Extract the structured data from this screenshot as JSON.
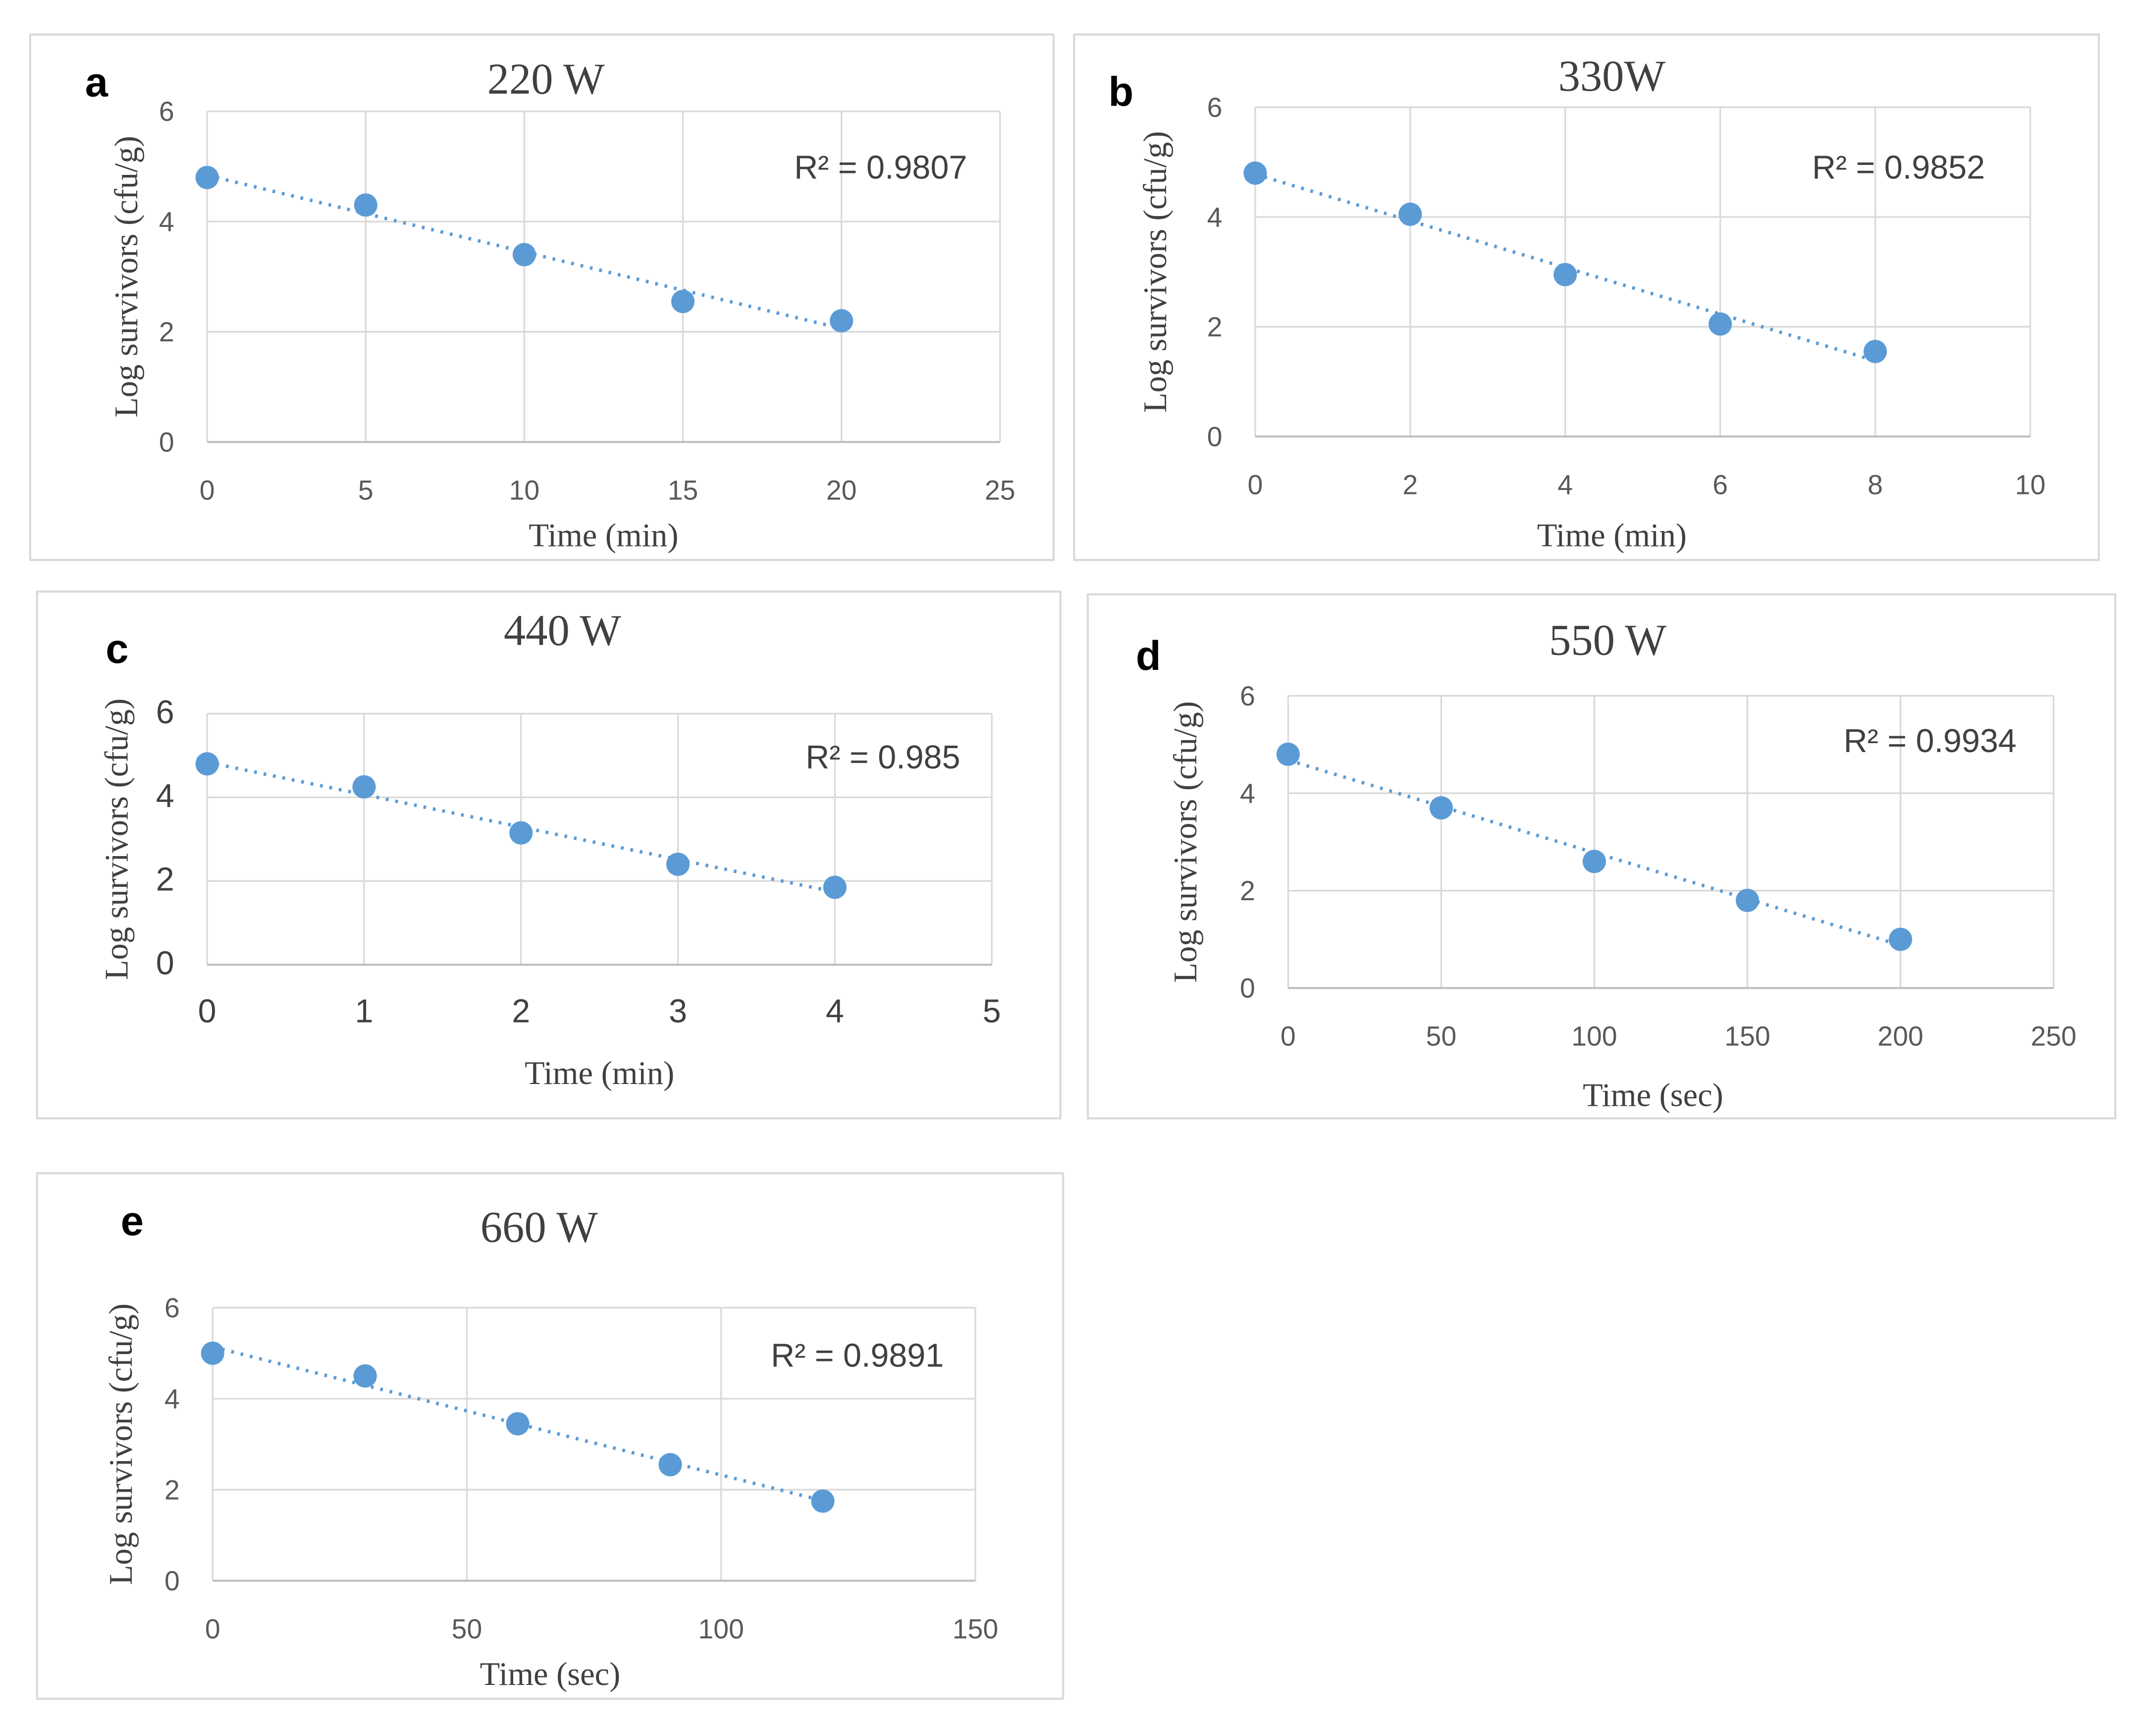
{
  "chart_data": [
    {
      "type": "scatter",
      "panel": "a",
      "title": "220 W",
      "xlabel": "Time (min)",
      "ylabel": "Log survivors (cfu/g)",
      "xlim": [
        0,
        25
      ],
      "xticks": [
        0,
        5,
        10,
        15,
        20,
        25
      ],
      "ylim": [
        0,
        6
      ],
      "yticks": [
        0,
        2,
        4,
        6
      ],
      "grid": true,
      "x": [
        0,
        5,
        10,
        15,
        20
      ],
      "y": [
        4.8,
        4.3,
        3.4,
        2.55,
        2.2
      ],
      "trendline": "linear dotted",
      "r2_label": "R² = 0.9807"
    },
    {
      "type": "scatter",
      "panel": "b",
      "title": "330W",
      "xlabel": "Time (min)",
      "ylabel": "Log survivors (cfu/g)",
      "xlim": [
        0,
        10
      ],
      "xticks": [
        0,
        2,
        4,
        6,
        8,
        10
      ],
      "ylim": [
        0,
        6
      ],
      "yticks": [
        0,
        2,
        4,
        6
      ],
      "grid": true,
      "x": [
        0,
        2,
        4,
        6,
        8
      ],
      "y": [
        4.8,
        4.05,
        2.95,
        2.05,
        1.55
      ],
      "trendline": "linear dotted",
      "r2_label": "R² = 0.9852"
    },
    {
      "type": "scatter",
      "panel": "c",
      "title": "440 W",
      "xlabel": "Time (min)",
      "ylabel": "Log survivors (cfu/g)",
      "xlim": [
        0,
        5
      ],
      "xticks": [
        0,
        1,
        2,
        3,
        4,
        5
      ],
      "ylim": [
        0,
        6
      ],
      "yticks": [
        0,
        2,
        4,
        6
      ],
      "grid": true,
      "x": [
        0,
        1,
        2,
        3,
        4
      ],
      "y": [
        4.8,
        4.25,
        3.15,
        2.4,
        1.85
      ],
      "trendline": "linear dotted",
      "r2_label": "R² = 0.985"
    },
    {
      "type": "scatter",
      "panel": "d",
      "title": "550 W",
      "xlabel": "Time (sec)",
      "ylabel": "Log survivors (cfu/g)",
      "xlim": [
        0,
        250
      ],
      "xticks": [
        0,
        50,
        100,
        150,
        200,
        250
      ],
      "ylim": [
        0,
        6
      ],
      "yticks": [
        0,
        2,
        4,
        6
      ],
      "grid": true,
      "x": [
        0,
        50,
        100,
        150,
        200
      ],
      "y": [
        4.8,
        3.7,
        2.6,
        1.8,
        1.0
      ],
      "trendline": "linear dotted",
      "r2_label": "R² = 0.9934"
    },
    {
      "type": "scatter",
      "panel": "e",
      "title": "660 W",
      "xlabel": "Time (sec)",
      "ylabel": "Log survivors (cfu/g)",
      "xlim": [
        0,
        150
      ],
      "xticks": [
        0,
        50,
        100,
        150
      ],
      "ylim": [
        0,
        6
      ],
      "yticks": [
        0,
        2,
        4,
        6
      ],
      "grid": true,
      "x": [
        0,
        30,
        60,
        90,
        120
      ],
      "y": [
        5.0,
        4.5,
        3.45,
        2.55,
        1.75
      ],
      "trendline": "linear dotted",
      "r2_label": "R² = 0.9891"
    }
  ],
  "colors": {
    "marker": "#5B9BD5",
    "grid": "#D9D9D9",
    "frame": "#D9D9D9"
  }
}
